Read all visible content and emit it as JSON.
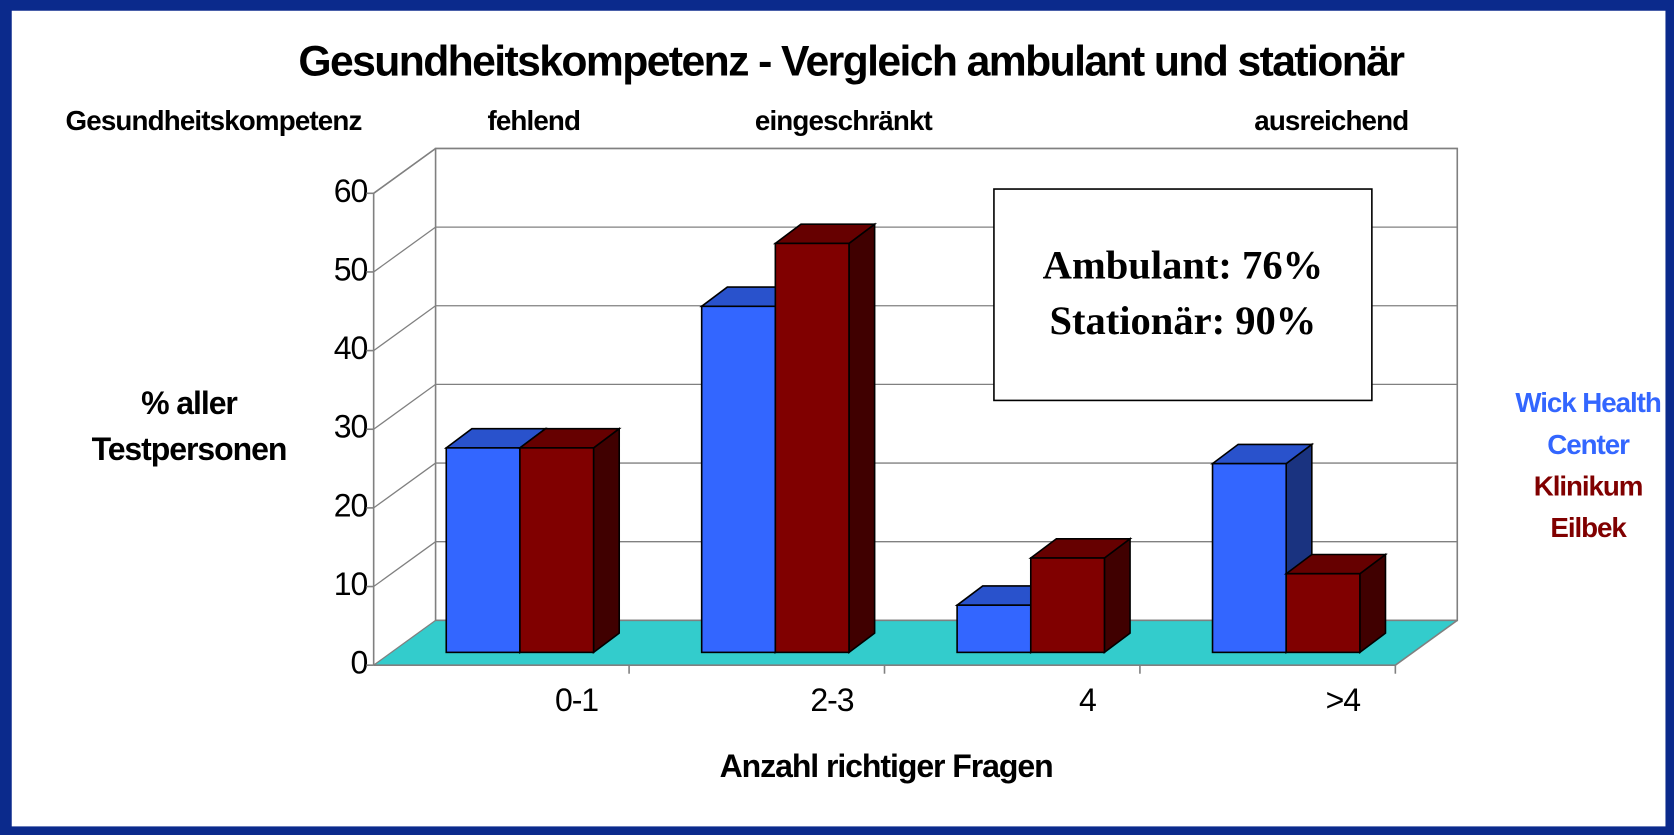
{
  "chart_data": {
    "type": "bar3d",
    "title": "Gesundheitskompetenz - Vergleich ambulant und stationär",
    "header_labels": [
      "Gesundheitskompetenz",
      "fehlend",
      "eingeschränkt",
      "ausreichend"
    ],
    "ylabel": [
      "% aller",
      "Testpersonen"
    ],
    "xlabel": "Anzahl richtiger Fragen",
    "categories": [
      "0-1",
      "2-3",
      "4",
      ">4"
    ],
    "series": [
      {
        "name": "Wick Health Center",
        "color": "#3366ff",
        "values": [
          26,
          44,
          6,
          24
        ]
      },
      {
        "name": "Klinikum Eilbek",
        "color": "#800000",
        "values": [
          26,
          52,
          12,
          10
        ]
      }
    ],
    "annotations": [
      "Ambulant: 76%",
      "Stationär: 90%"
    ],
    "ylim": [
      0,
      60
    ],
    "yticks": [
      0,
      10,
      20,
      30,
      40,
      50,
      60
    ],
    "grid": true,
    "floor_color": "#33cccc",
    "legend": "right"
  }
}
